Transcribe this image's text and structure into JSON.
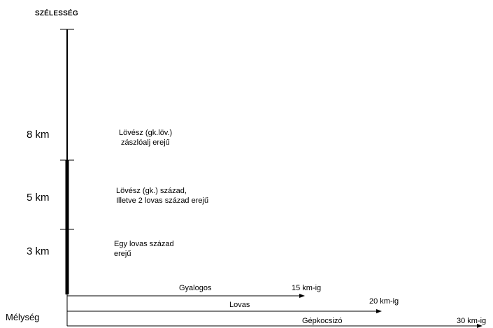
{
  "title": "SZÉLESSÉG",
  "depth_label": "Mélység",
  "widths": [
    {
      "km": "8 km",
      "line1": "Lövész (gk.löv.)",
      "line2": " zászlóalj erejű"
    },
    {
      "km": "5 km",
      "line1": "Lövész (gk.) század,",
      "line2": "Illetve 2 lovas század erejű"
    },
    {
      "km": "3 km",
      "line1": "Egy lovas század",
      "line2": "erejű"
    }
  ],
  "arrows": [
    {
      "name": "Gyalogos",
      "range": "15 km-ig"
    },
    {
      "name": "Lovas",
      "range": "20 km-ig"
    },
    {
      "name": "Gépkocsizó",
      "range": "30 km-ig"
    }
  ]
}
